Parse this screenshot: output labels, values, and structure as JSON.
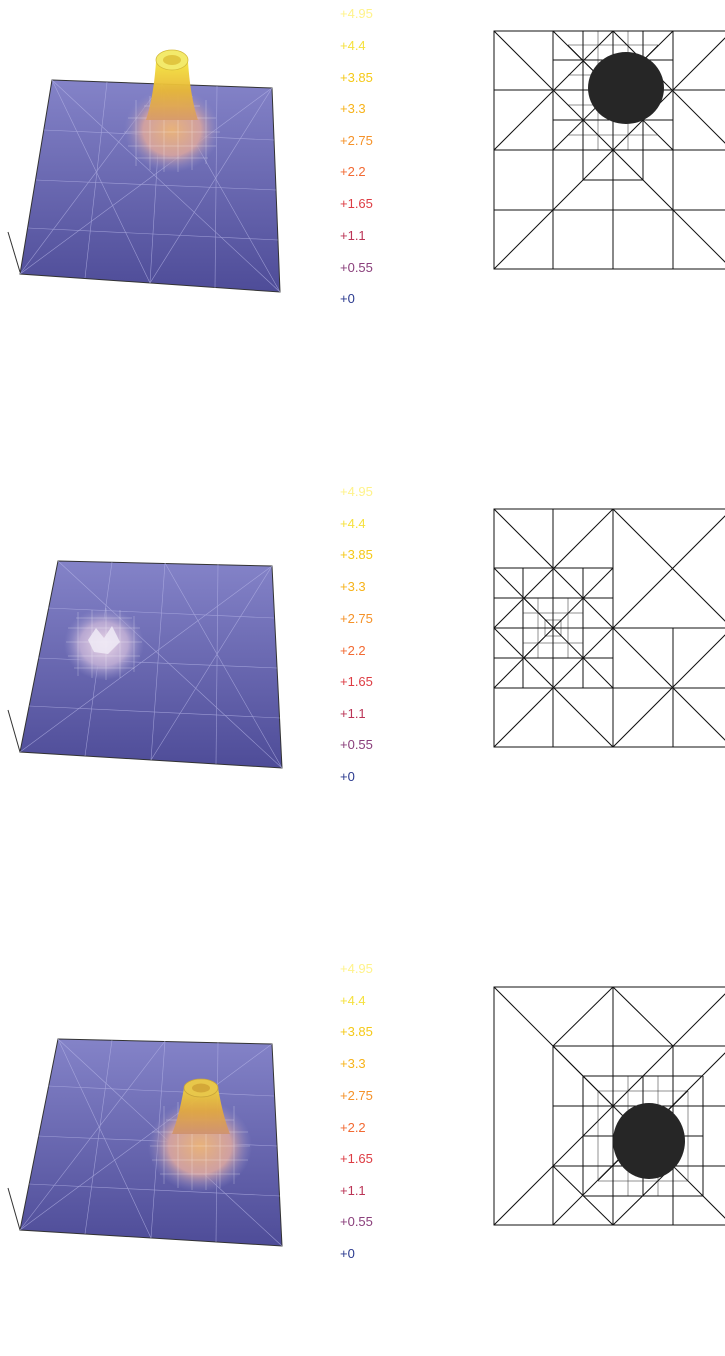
{
  "legend_colors": [
    "#fff38a",
    "#f6e13e",
    "#f5c919",
    "#f7b31b",
    "#f59229",
    "#f26a33",
    "#dd3c43",
    "#bb3456",
    "#8a3f7b",
    "#2b3a8f"
  ],
  "panels": [
    {
      "legend": [
        "+4.95",
        "+4.4",
        "+3.85",
        "+3.3",
        "+2.75",
        "+2.2",
        "+1.65",
        "+1.1",
        "+0.55",
        "+0"
      ],
      "peak": "center-top",
      "mesh_refinement": "upper-center"
    },
    {
      "legend": [
        "+4.95",
        "+4.4",
        "+3.85",
        "+3.3",
        "+2.75",
        "+2.2",
        "+1.65",
        "+1.1",
        "+0.55",
        "+0"
      ],
      "peak": "flat-left",
      "mesh_refinement": "left"
    },
    {
      "legend": [
        "+4.95",
        "+4.4",
        "+3.85",
        "+3.3",
        "+2.75",
        "+2.2",
        "+1.65",
        "+1.1",
        "+0.55",
        "+0"
      ],
      "peak": "center-right",
      "mesh_refinement": "lower-right"
    }
  ]
}
